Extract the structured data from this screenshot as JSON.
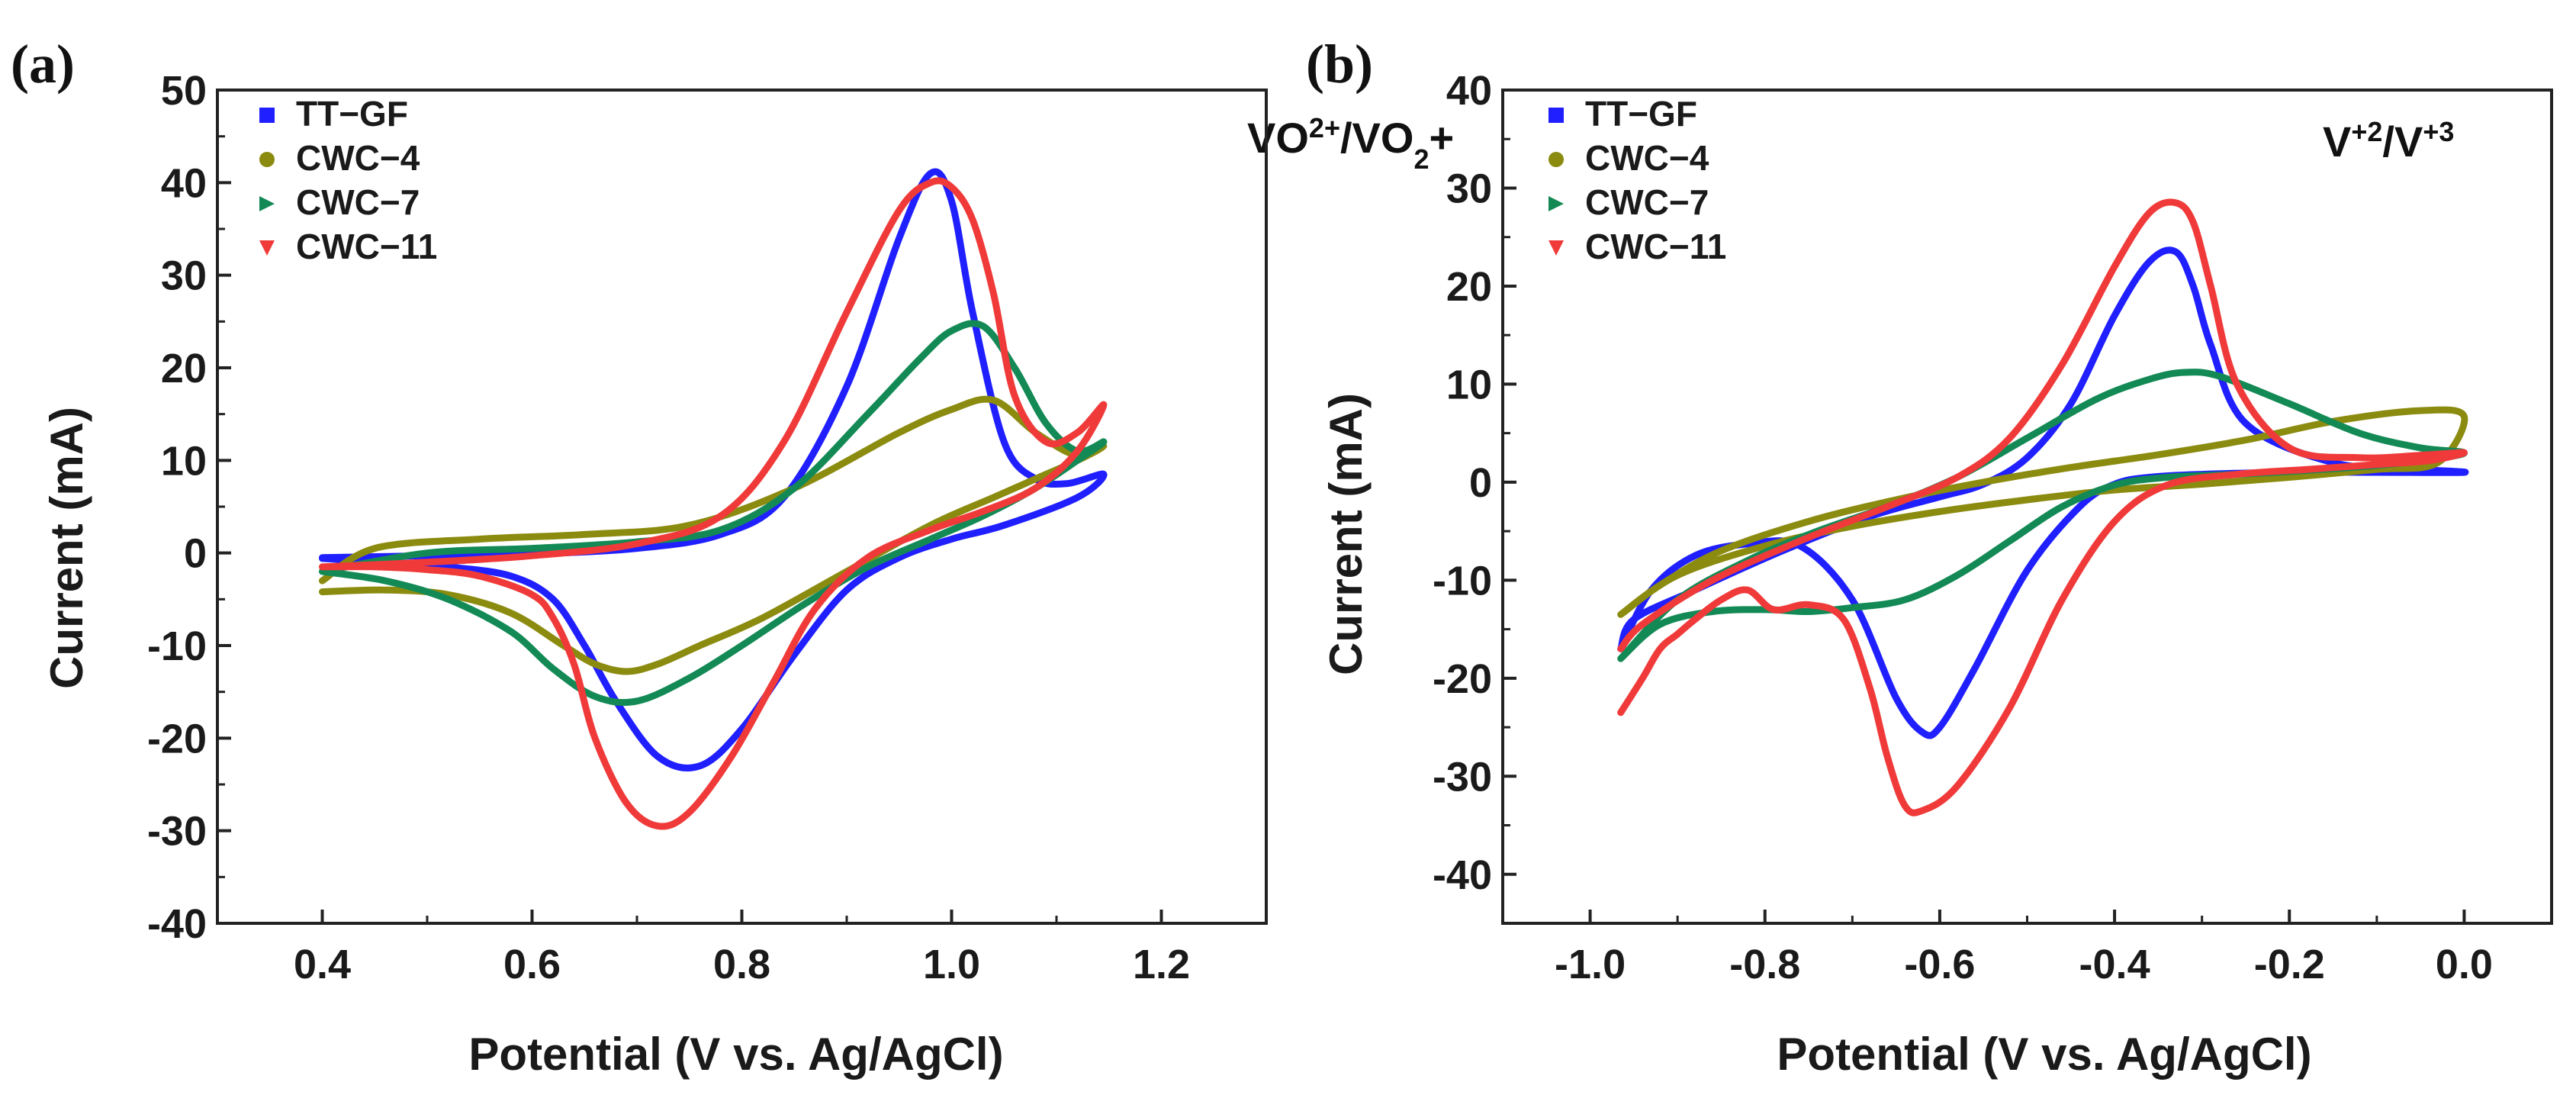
{
  "chart_data": [
    {
      "type": "line",
      "panel_label": "(a)",
      "annotation": {
        "main": "VO",
        "sup": "2+",
        "mid": "/VO",
        "sub": "2",
        "tail": "+"
      },
      "xlabel": "Potential (V vs. Ag/AgCl)",
      "ylabel": "Current (mA)",
      "xlim": [
        0.3,
        1.3
      ],
      "ylim": [
        -40,
        50
      ],
      "xticks": [
        0.4,
        0.6,
        0.8,
        1.0,
        1.2
      ],
      "xtick_labels": [
        "0.4",
        "0.6",
        "0.8",
        "1.0",
        "1.2"
      ],
      "yticks": [
        -40,
        -30,
        -20,
        -10,
        0,
        10,
        20,
        30,
        40,
        50
      ],
      "ytick_labels": [
        "-40",
        "-30",
        "-20",
        "-10",
        "0",
        "10",
        "20",
        "30",
        "40",
        "50"
      ],
      "legend_position": "top-left",
      "series": [
        {
          "name": "TT−GF",
          "color": "#1f1fff",
          "marker": "square",
          "x": [
            0.4,
            0.5,
            0.6,
            0.7,
            0.78,
            0.84,
            0.9,
            0.95,
            0.98,
            1.0,
            1.02,
            1.05,
            1.08,
            1.11,
            1.145,
            1.12,
            1.05,
            1.0,
            0.95,
            0.9,
            0.85,
            0.8,
            0.76,
            0.72,
            0.68,
            0.65,
            0.62,
            0.58,
            0.52,
            0.46,
            0.4
          ],
          "y": [
            -0.5,
            -0.3,
            -0.1,
            0.5,
            2.0,
            6.0,
            18.0,
            34.0,
            41.0,
            38.0,
            26.0,
            12.0,
            8.0,
            7.5,
            8.5,
            6.0,
            3.0,
            1.5,
            -0.5,
            -4.0,
            -11.0,
            -19.0,
            -23.0,
            -22.0,
            -16.0,
            -10.0,
            -5.0,
            -2.5,
            -1.5,
            -1.0,
            -0.6
          ]
        },
        {
          "name": "CWC−4",
          "color": "#8b8b10",
          "marker": "circle",
          "x": [
            0.4,
            0.45,
            0.55,
            0.65,
            0.75,
            0.85,
            0.95,
            1.0,
            1.04,
            1.08,
            1.12,
            1.145,
            1.12,
            1.08,
            1.04,
            0.98,
            0.9,
            0.82,
            0.76,
            0.72,
            0.69,
            0.66,
            0.63,
            0.58,
            0.52,
            0.46,
            0.4
          ],
          "y": [
            -3.0,
            0.5,
            1.5,
            2.0,
            3.0,
            7.0,
            13.0,
            15.5,
            16.5,
            13.0,
            10.5,
            11.5,
            10.0,
            8.0,
            6.0,
            3.0,
            -2.0,
            -7.0,
            -10.0,
            -12.0,
            -12.8,
            -12.0,
            -10.0,
            -6.5,
            -4.5,
            -4.0,
            -4.2
          ]
        },
        {
          "name": "CWC−7",
          "color": "#138a55",
          "marker": "triangle-right",
          "x": [
            0.4,
            0.5,
            0.6,
            0.7,
            0.78,
            0.85,
            0.92,
            0.97,
            1.0,
            1.03,
            1.06,
            1.09,
            1.12,
            1.145,
            1.12,
            1.08,
            1.03,
            0.98,
            0.92,
            0.86,
            0.8,
            0.75,
            0.7,
            0.66,
            0.62,
            0.58,
            0.52,
            0.46,
            0.4
          ],
          "y": [
            -2.0,
            0.0,
            0.5,
            1.2,
            2.5,
            7.0,
            15.0,
            21.0,
            24.0,
            24.5,
            20.0,
            14.0,
            11.0,
            12.0,
            10.0,
            7.0,
            4.0,
            1.5,
            -1.5,
            -5.5,
            -10.0,
            -13.5,
            -16.0,
            -15.5,
            -12.5,
            -8.5,
            -5.0,
            -3.0,
            -2.0
          ]
        },
        {
          "name": "CWC−11",
          "color": "#f03a3a",
          "marker": "triangle-down",
          "x": [
            0.4,
            0.5,
            0.6,
            0.7,
            0.78,
            0.84,
            0.9,
            0.95,
            0.98,
            1.0,
            1.02,
            1.04,
            1.06,
            1.09,
            1.12,
            1.145,
            1.12,
            1.08,
            1.03,
            0.98,
            0.92,
            0.87,
            0.83,
            0.79,
            0.75,
            0.72,
            0.69,
            0.66,
            0.64,
            0.62,
            0.6,
            0.55,
            0.5,
            0.45,
            0.4
          ],
          "y": [
            -1.5,
            -1.0,
            -0.3,
            1.0,
            4.0,
            12.0,
            26.0,
            37.0,
            40.0,
            39.5,
            36.0,
            28.0,
            17.0,
            12.0,
            13.0,
            16.0,
            11.0,
            7.0,
            4.5,
            2.5,
            -0.5,
            -6.0,
            -14.0,
            -22.0,
            -28.0,
            -29.5,
            -27.0,
            -20.0,
            -12.0,
            -7.0,
            -4.5,
            -2.5,
            -1.8,
            -1.5,
            -1.5
          ]
        }
      ]
    },
    {
      "type": "line",
      "panel_label": "(b)",
      "annotation": {
        "main": "V",
        "sup": "+2",
        "mid": "/V",
        "sup2": "+3"
      },
      "xlabel": "Potential (V vs. Ag/AgCl)",
      "ylabel": "Current (mA)",
      "xlim": [
        -1.1,
        0.1
      ],
      "ylim": [
        -45,
        40
      ],
      "xticks": [
        -1.0,
        -0.8,
        -0.6,
        -0.4,
        -0.2,
        0.0
      ],
      "xtick_labels": [
        "-1.0",
        "-0.8",
        "-0.6",
        "-0.4",
        "-0.2",
        "0.0"
      ],
      "yticks": [
        -40,
        -30,
        -20,
        -10,
        0,
        10,
        20,
        30,
        40
      ],
      "ytick_labels": [
        "-40",
        "-30",
        "-20",
        "-10",
        "0",
        "10",
        "20",
        "30",
        "40"
      ],
      "legend_position": "top-left",
      "series": [
        {
          "name": "TT−GF",
          "color": "#1f1fff",
          "marker": "square",
          "x": [
            -0.965,
            -0.93,
            -0.88,
            -0.82,
            -0.76,
            -0.7,
            -0.65,
            -0.62,
            -0.6,
            -0.56,
            -0.5,
            -0.44,
            -0.4,
            -0.36,
            -0.3,
            -0.2,
            -0.1,
            0.0,
            -0.05,
            -0.15,
            -0.25,
            -0.29,
            -0.31,
            -0.33,
            -0.36,
            -0.4,
            -0.45,
            -0.5,
            -0.55,
            -0.6,
            -0.68,
            -0.78,
            -0.88,
            -0.95,
            -0.965
          ],
          "y": [
            -17.0,
            -11.0,
            -7.5,
            -6.3,
            -6.5,
            -12.0,
            -22.0,
            -25.5,
            -25.0,
            -19.0,
            -9.0,
            -2.5,
            -0.2,
            0.5,
            0.8,
            1.0,
            1.0,
            1.0,
            1.3,
            2.0,
            6.0,
            14.0,
            20.0,
            23.5,
            22.5,
            17.0,
            8.0,
            2.5,
            -0.2,
            -1.5,
            -3.5,
            -7.0,
            -11.0,
            -14.0,
            -17.0
          ]
        },
        {
          "name": "CWC−4",
          "color": "#8b8b10",
          "marker": "circle",
          "x": [
            -0.965,
            -0.9,
            -0.8,
            -0.7,
            -0.6,
            -0.5,
            -0.4,
            -0.3,
            -0.2,
            -0.1,
            -0.03,
            0.0,
            -0.05,
            -0.15,
            -0.25,
            -0.35,
            -0.45,
            -0.55,
            -0.65,
            -0.75,
            -0.85,
            -0.92,
            -0.965
          ],
          "y": [
            -13.5,
            -9.5,
            -6.5,
            -4.5,
            -3.0,
            -1.8,
            -0.8,
            -0.2,
            0.5,
            1.3,
            2.0,
            6.7,
            7.3,
            6.2,
            4.3,
            2.8,
            1.5,
            0.0,
            -1.8,
            -4.0,
            -7.0,
            -10.5,
            -13.5
          ]
        },
        {
          "name": "CWC−7",
          "color": "#138a55",
          "marker": "triangle-right",
          "x": [
            -0.965,
            -0.92,
            -0.86,
            -0.8,
            -0.75,
            -0.7,
            -0.64,
            -0.58,
            -0.52,
            -0.46,
            -0.4,
            -0.34,
            -0.26,
            -0.18,
            -0.1,
            -0.04,
            0.0,
            -0.05,
            -0.12,
            -0.2,
            -0.28,
            -0.32,
            -0.36,
            -0.42,
            -0.5,
            -0.58,
            -0.66,
            -0.74,
            -0.82,
            -0.9,
            -0.965
          ],
          "y": [
            -18.0,
            -14.5,
            -13.2,
            -13.0,
            -13.2,
            -12.8,
            -12.0,
            -9.5,
            -6.0,
            -2.5,
            -0.3,
            0.5,
            0.8,
            1.2,
            1.7,
            2.3,
            3.0,
            3.5,
            5.0,
            8.0,
            10.8,
            11.2,
            10.5,
            8.5,
            4.5,
            0.5,
            -2.5,
            -5.0,
            -8.0,
            -12.0,
            -18.0
          ]
        },
        {
          "name": "CWC−11",
          "color": "#f03a3a",
          "marker": "triangle-down",
          "x": [
            -0.965,
            -0.94,
            -0.92,
            -0.9,
            -0.88,
            -0.85,
            -0.82,
            -0.79,
            -0.75,
            -0.71,
            -0.68,
            -0.66,
            -0.64,
            -0.62,
            -0.58,
            -0.52,
            -0.46,
            -0.4,
            -0.34,
            -0.26,
            -0.18,
            -0.1,
            -0.04,
            0.0,
            -0.04,
            -0.12,
            -0.2,
            -0.26,
            -0.29,
            -0.31,
            -0.33,
            -0.36,
            -0.4,
            -0.46,
            -0.52,
            -0.58,
            -0.66,
            -0.76,
            -0.86,
            -0.94,
            -0.965
          ],
          "y": [
            -23.5,
            -20.0,
            -17.0,
            -15.5,
            -14.0,
            -12.0,
            -11.0,
            -13.0,
            -12.5,
            -14.0,
            -21.0,
            -28.0,
            -33.0,
            -33.5,
            -31.0,
            -23.0,
            -12.0,
            -4.0,
            -0.3,
            0.8,
            1.3,
            1.8,
            2.2,
            3.0,
            2.8,
            2.5,
            3.5,
            10.0,
            20.0,
            26.5,
            28.5,
            27.5,
            22.0,
            12.0,
            4.5,
            0.5,
            -2.5,
            -6.0,
            -10.0,
            -14.5,
            -17.0
          ]
        }
      ]
    }
  ]
}
